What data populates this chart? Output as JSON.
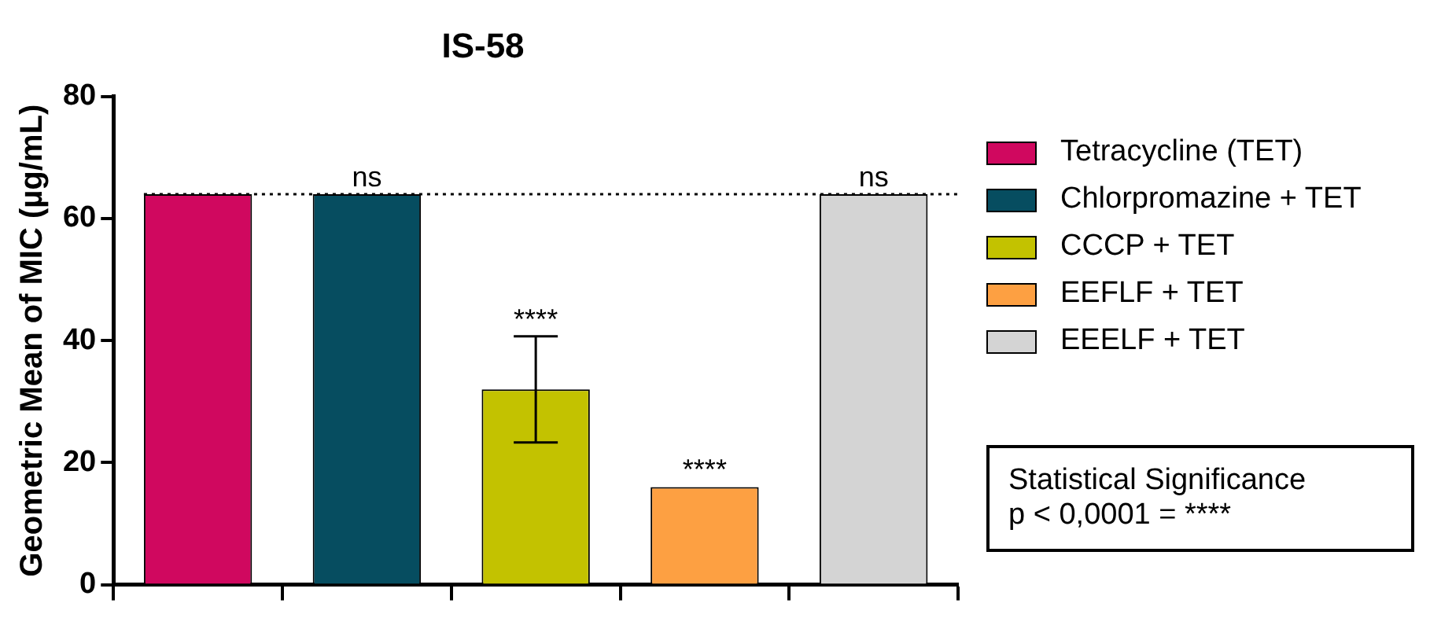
{
  "chart_data": {
    "type": "bar",
    "title": "IS-58",
    "ylabel": "Geometric Mean of MIC (µg/mL)",
    "categories": [
      null,
      null,
      null,
      null,
      null
    ],
    "series": [
      {
        "name": "Tetracycline (TET)",
        "color": "#d0085f",
        "values": [
          64,
          null,
          null,
          null,
          null
        ]
      },
      {
        "name": "Chlorpromazine + TET",
        "color": "#064d60",
        "values": [
          null,
          64,
          null,
          null,
          null
        ],
        "value_labels": [
          null,
          "ns",
          null,
          null,
          null
        ]
      },
      {
        "name": "CCCP + TET",
        "color": "#c3c200",
        "values": [
          null,
          null,
          32,
          null,
          null
        ],
        "errors": [
          null,
          null,
          [
            23.3,
            40.7
          ],
          null,
          null
        ],
        "value_labels": [
          null,
          null,
          "****",
          null,
          null
        ]
      },
      {
        "name": "EEFLF + TET",
        "color": "#fda042",
        "values": [
          null,
          null,
          null,
          16,
          null
        ],
        "value_labels": [
          null,
          null,
          null,
          "****",
          null
        ]
      },
      {
        "name": "EEELF + TET",
        "color": "#d4d4d4",
        "values": [
          null,
          null,
          null,
          null,
          64
        ],
        "value_labels": [
          null,
          null,
          null,
          null,
          "ns"
        ]
      }
    ],
    "ylim": [
      0,
      80
    ],
    "yticks": [
      0,
      20,
      40,
      60,
      80
    ],
    "ref_lines": [
      {
        "axis": "y",
        "value": 64,
        "line_style": "dotted",
        "color": "#000000"
      }
    ],
    "annotations": [
      "Statistical Significance\np < 0,0001 = ****"
    ],
    "legend": "right",
    "grid": false
  }
}
